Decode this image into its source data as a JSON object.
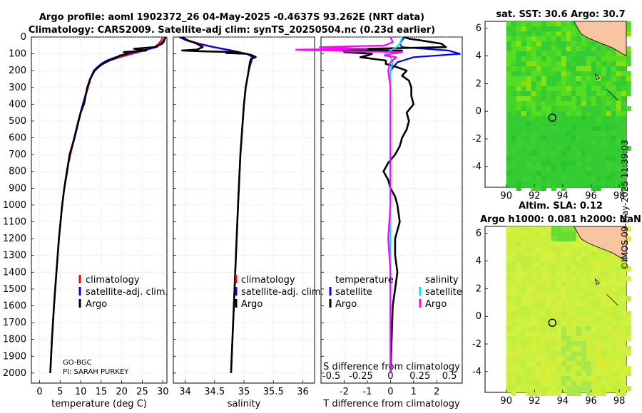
{
  "title_line1": "Argo profile: aoml 1902372_26 04-May-2025 -0.4637S 93.262E (NRT data)",
  "title_line2": "Climatology: CARS2009. Satellite-adj clim: synTS_20250504.nc (0.23d earlier)",
  "depth_ticks": [
    "0",
    "100",
    "200",
    "300",
    "400",
    "500",
    "600",
    "700",
    "800",
    "900",
    "1000",
    "1100",
    "1200",
    "1300",
    "1400",
    "1500",
    "1600",
    "1700",
    "1800",
    "1900",
    "2000"
  ],
  "colors": {
    "climatology": "#ff0000",
    "satellite": "#0000ff",
    "argo": "#000000",
    "salinity_sat": "#00e5ee",
    "salinity_clim": "#ff00ff",
    "sst_green": "#2ecc40",
    "land": "#f7c59f"
  },
  "chart_data": [
    {
      "type": "line",
      "name": "temperature",
      "xlabel": "temperature (deg C)",
      "ylabel": "depth",
      "xlim": [
        -2,
        31
      ],
      "ylim": [
        2060,
        0
      ],
      "xticks": [
        "0",
        "5",
        "10",
        "15",
        "20",
        "25",
        "30"
      ],
      "legend": [
        "climatology",
        "satellite-adj. clim.",
        "Argo"
      ],
      "annotations": [
        "GO-BGC",
        "PI: SARAH PURKEY"
      ],
      "series": [
        {
          "name": "climatology",
          "depth": [
            0,
            20,
            40,
            60,
            80,
            100,
            120,
            140,
            160,
            180,
            200,
            250,
            300,
            400,
            500,
            600,
            700,
            800,
            900,
            1000,
            1200,
            1400,
            1600,
            1800,
            2000
          ],
          "values": [
            30.0,
            29.6,
            29.0,
            28.0,
            25.5,
            22.5,
            19.5,
            17.0,
            15.5,
            14.2,
            13.3,
            12.4,
            11.8,
            10.6,
            9.5,
            8.5,
            7.5,
            6.6,
            6.0,
            5.5,
            4.7,
            4.1,
            3.5,
            3.0,
            2.6
          ]
        },
        {
          "name": "satellite-adj. clim.",
          "depth": [
            0,
            20,
            40,
            60,
            80,
            100,
            120,
            140,
            160,
            180,
            200,
            250,
            300,
            400,
            500,
            600,
            700,
            800,
            900,
            1000,
            1200,
            1400,
            1600,
            1800,
            2000
          ],
          "values": [
            30.8,
            30.2,
            29.5,
            28.5,
            25.0,
            21.5,
            18.5,
            16.3,
            15.0,
            14.0,
            13.2,
            12.3,
            11.7,
            10.5,
            9.4,
            8.4,
            7.4,
            6.6,
            6.0,
            5.5,
            4.7,
            4.1,
            3.5,
            3.0,
            2.6
          ]
        },
        {
          "name": "Argo",
          "depth": [
            0,
            10,
            20,
            30,
            40,
            60,
            70,
            80,
            90,
            100,
            110,
            120,
            140,
            160,
            180,
            200,
            250,
            300,
            350,
            400,
            450,
            500,
            600,
            700,
            800,
            900,
            1000,
            1200,
            1400,
            1600,
            1800,
            2000
          ],
          "values": [
            30.6,
            30.5,
            30.3,
            30.2,
            29.8,
            28.0,
            23.0,
            26.0,
            20.5,
            21.5,
            19.5,
            19.0,
            17.0,
            15.3,
            14.3,
            13.4,
            12.3,
            11.6,
            11.2,
            10.8,
            10.0,
            9.5,
            8.5,
            7.3,
            6.7,
            6.0,
            5.5,
            4.7,
            4.1,
            3.5,
            3.0,
            2.6
          ]
        }
      ]
    },
    {
      "type": "line",
      "name": "salinity",
      "xlabel": "salinity",
      "xlim": [
        33.8,
        36.2
      ],
      "ylim": [
        2060,
        0
      ],
      "xticks": [
        "34",
        "34.5",
        "35",
        "35.5",
        "36"
      ],
      "legend": [
        "climatology",
        "satellite-adj. clim.",
        "Argo"
      ],
      "series": [
        {
          "name": "climatology",
          "depth": [
            0,
            20,
            40,
            60,
            80,
            100,
            120,
            150,
            200,
            300,
            400,
            500,
            700,
            1000,
            1500,
            2000
          ],
          "values": [
            33.95,
            34.05,
            34.25,
            34.5,
            34.8,
            35.05,
            35.15,
            35.12,
            35.08,
            35.03,
            35.0,
            34.98,
            34.94,
            34.9,
            34.84,
            34.78
          ]
        },
        {
          "name": "satellite-adj. clim.",
          "depth": [
            0,
            20,
            40,
            60,
            80,
            100,
            120,
            150,
            200,
            300,
            400,
            500,
            700,
            1000,
            1500,
            2000
          ],
          "values": [
            33.9,
            34.02,
            34.22,
            34.48,
            34.78,
            35.05,
            35.15,
            35.12,
            35.08,
            35.03,
            35.0,
            34.98,
            34.94,
            34.9,
            34.84,
            34.78
          ]
        },
        {
          "name": "Argo",
          "depth": [
            0,
            20,
            40,
            60,
            75,
            80,
            85,
            90,
            95,
            100,
            110,
            120,
            130,
            150,
            200,
            300,
            400,
            500,
            700,
            1000,
            1500,
            2000
          ],
          "values": [
            33.95,
            34.05,
            34.2,
            34.3,
            34.2,
            33.95,
            34.3,
            34.9,
            34.7,
            35.05,
            35.15,
            35.2,
            35.12,
            35.1,
            35.08,
            35.03,
            35.0,
            34.98,
            34.94,
            34.9,
            34.84,
            34.78
          ]
        }
      ]
    },
    {
      "type": "line",
      "name": "difference from climatology",
      "xlabel": "T difference from climatology",
      "xlabel2": "S difference from climatology",
      "xlim": [
        -3,
        3.1
      ],
      "ylim": [
        2060,
        0
      ],
      "xticks": [
        "-2",
        "-1",
        "0",
        "1",
        "2"
      ],
      "xticks2": [
        "-0.5",
        "-0.25",
        "0",
        "0.25",
        "0.5"
      ],
      "legend_temperature_title": "temperature",
      "legend_salinity_title": "salinity",
      "legend_temperature": [
        "satellite",
        "Argo"
      ],
      "legend_salinity": [
        "satellite",
        "Argo"
      ],
      "series": [
        {
          "name": "T satellite",
          "depth": [
            0,
            20,
            40,
            60,
            80,
            100,
            120,
            150,
            200,
            300,
            500,
            800,
            1000,
            1400,
            1600,
            2000
          ],
          "values": [
            0.6,
            0.5,
            0.4,
            0.5,
            2.5,
            3.0,
            1.0,
            0.3,
            0.0,
            0.0,
            0.0,
            0.0,
            0.0,
            0.0,
            0.0,
            0.0
          ]
        },
        {
          "name": "T Argo",
          "depth": [
            0,
            10,
            20,
            40,
            60,
            70,
            75,
            80,
            90,
            100,
            110,
            120,
            140,
            160,
            180,
            200,
            230,
            260,
            300,
            350,
            400,
            450,
            500,
            550,
            600,
            650,
            700,
            750,
            800,
            850,
            900,
            950,
            1000,
            1100,
            1200,
            1300,
            1400,
            1500,
            1600,
            2000
          ],
          "values": [
            0.6,
            0.8,
            1.3,
            2.2,
            2.4,
            -1.0,
            -3.0,
            0.5,
            -2.0,
            -0.8,
            -1.0,
            -1.3,
            -0.2,
            -0.2,
            0.3,
            0.7,
            0.5,
            0.8,
            0.9,
            0.9,
            1.0,
            0.7,
            0.8,
            0.7,
            0.5,
            0.4,
            0.2,
            -0.1,
            -0.3,
            -0.1,
            0.0,
            0.2,
            0.3,
            0.4,
            0.2,
            0.2,
            0.3,
            0.2,
            0.1,
            0.0
          ]
        },
        {
          "name": "S satellite",
          "depth": [
            0,
            40,
            60,
            80,
            100,
            120,
            150,
            200,
            300,
            500,
            800,
            1000,
            1400,
            1600,
            2000
          ],
          "values": [
            0.1,
            0.08,
            0.05,
            0.0,
            -0.05,
            0.0,
            0.02,
            0.0,
            0.0,
            0.0,
            0.0,
            0.0,
            0.0,
            0.0,
            0.0
          ]
        },
        {
          "name": "S Argo",
          "depth": [
            0,
            30,
            50,
            60,
            70,
            75,
            80,
            85,
            90,
            100,
            110,
            120,
            150,
            200,
            300,
            400,
            500,
            700,
            900,
            1000,
            1200,
            1400,
            1500,
            1600,
            2000
          ],
          "values": [
            0.0,
            0.02,
            -0.05,
            -0.6,
            -0.2,
            -0.8,
            -0.5,
            -0.3,
            0.1,
            0.0,
            -0.05,
            0.05,
            0.0,
            -0.02,
            0.0,
            0.0,
            0.0,
            0.0,
            0.0,
            0.0,
            -0.02,
            0.0,
            0.0,
            0.0,
            0.0
          ]
        }
      ]
    },
    {
      "type": "heatmap",
      "name": "satellite SST map",
      "title": "sat. SST: 30.6 Argo: 30.7",
      "xlim": [
        88.5,
        98.5
      ],
      "ylim": [
        -5.5,
        6.5
      ],
      "xticks": [
        "90",
        "92",
        "94",
        "96",
        "98"
      ],
      "yticks": [
        "6",
        "4",
        "2",
        "0",
        "-2",
        "-4"
      ],
      "marker": {
        "lon": 93.262,
        "lat": -0.4637
      }
    },
    {
      "type": "heatmap",
      "name": "altimetry SLA map",
      "title": "Altim. SLA: 0.12",
      "subtitle": "Argo h1000: 0.081 h2000: NaN",
      "xlim": [
        88.5,
        98.5
      ],
      "ylim": [
        -5.5,
        6.5
      ],
      "xticks": [
        "90",
        "92",
        "94",
        "96",
        "98"
      ],
      "yticks": [
        "6",
        "4",
        "2",
        "0",
        "-2",
        "-4"
      ],
      "marker": {
        "lon": 93.262,
        "lat": -0.4637
      }
    }
  ],
  "watermark": "©IMOS 09-May-2025 11:39:03"
}
